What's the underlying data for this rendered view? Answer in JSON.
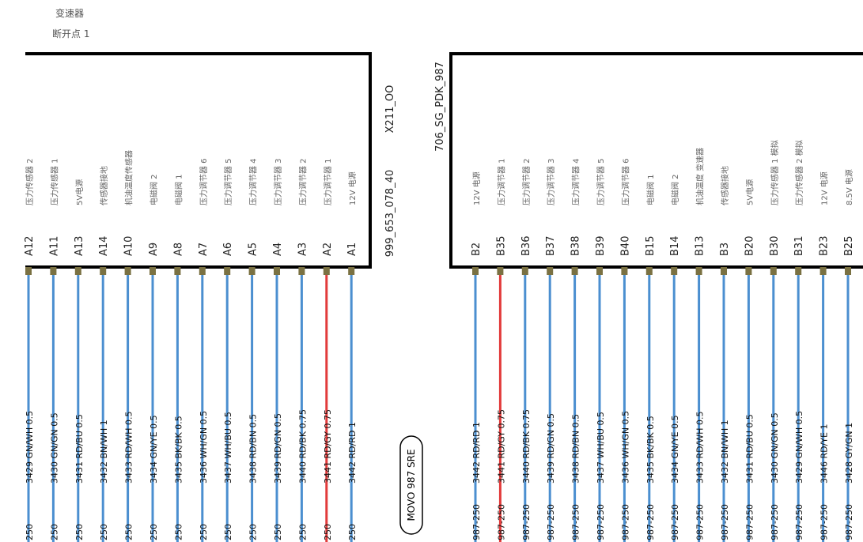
{
  "header": {
    "line1": "变速器",
    "line2": "断开点 1"
  },
  "left_connector": {
    "id": "X211_OO",
    "part_no": "999_653_078_40",
    "pins": [
      {
        "pin": "A12",
        "func": "压力传感器 2",
        "wire": "3429 GN/WH 0.5",
        "end": "250",
        "color": "#4b8fd0"
      },
      {
        "pin": "A11",
        "func": "压力传感器 1",
        "wire": "3430 GN/GN 0.5",
        "end": "250",
        "color": "#4b8fd0"
      },
      {
        "pin": "A13",
        "func": "5V电源",
        "wire": "3431 RD/BU 0.5",
        "end": "250",
        "color": "#4b8fd0"
      },
      {
        "pin": "A14",
        "func": "传感器接地",
        "wire": "3432 BN/WH 1",
        "end": "250",
        "color": "#4b8fd0"
      },
      {
        "pin": "A10",
        "func": "机油温度传感器",
        "wire": "3433 RD/WH 0.5",
        "end": "250",
        "color": "#4b8fd0"
      },
      {
        "pin": "A9",
        "func": "电磁阀 2",
        "wire": "3434 GN/YE 0.5",
        "end": "250",
        "color": "#4b8fd0"
      },
      {
        "pin": "A8",
        "func": "电磁阀 1",
        "wire": "3435 BK/BK 0.5",
        "end": "250",
        "color": "#4b8fd0"
      },
      {
        "pin": "A7",
        "func": "压力调节器 6",
        "wire": "3436 WH/GN 0.5",
        "end": "250",
        "color": "#4b8fd0"
      },
      {
        "pin": "A6",
        "func": "压力调节器 5",
        "wire": "3437 WH/BU 0.5",
        "end": "250",
        "color": "#4b8fd0"
      },
      {
        "pin": "A5",
        "func": "压力调节器 4",
        "wire": "3438 RD/BN 0.5",
        "end": "250",
        "color": "#4b8fd0"
      },
      {
        "pin": "A4",
        "func": "压力调节器 3",
        "wire": "3439 RD/GN 0.5",
        "end": "250",
        "color": "#4b8fd0"
      },
      {
        "pin": "A3",
        "func": "压力调节器 2",
        "wire": "3440 RD/BK 0.75",
        "end": "250",
        "color": "#4b8fd0"
      },
      {
        "pin": "A2",
        "func": "压力调节器 1",
        "wire": "3441 RD/GY 0.75",
        "end": "250",
        "color": "#e23b3b"
      },
      {
        "pin": "A1",
        "func": "12V 电源",
        "wire": "3442 RD/RD 1",
        "end": "250",
        "color": "#4b8fd0"
      }
    ]
  },
  "right_connector": {
    "id": "706_SG_PDK_987",
    "pins": [
      {
        "pin": "B2",
        "func": "12V 电源",
        "wire": "3442 RD/RD 1",
        "end": "987-250",
        "color": "#4b8fd0"
      },
      {
        "pin": "B35",
        "func": "压力调节器 1",
        "wire": "3441 RD/GY 0.75",
        "end": "987-250",
        "color": "#e23b3b"
      },
      {
        "pin": "B36",
        "func": "压力调节器 2",
        "wire": "3440 RD/BK 0.75",
        "end": "987-250",
        "color": "#4b8fd0"
      },
      {
        "pin": "B37",
        "func": "压力调节器 3",
        "wire": "3439 RD/GN 0.5",
        "end": "987-250",
        "color": "#4b8fd0"
      },
      {
        "pin": "B38",
        "func": "压力调节器 4",
        "wire": "3438 RD/BN 0.5",
        "end": "987-250",
        "color": "#4b8fd0"
      },
      {
        "pin": "B39",
        "func": "压力调节器 5",
        "wire": "3437 WH/BU 0.5",
        "end": "987-250",
        "color": "#4b8fd0"
      },
      {
        "pin": "B40",
        "func": "压力调节器 6",
        "wire": "3436 WH/GN 0.5",
        "end": "987-250",
        "color": "#4b8fd0"
      },
      {
        "pin": "B15",
        "func": "电磁阀 1",
        "wire": "3435 BK/BK 0.5",
        "end": "987-250",
        "color": "#4b8fd0"
      },
      {
        "pin": "B14",
        "func": "电磁阀 2",
        "wire": "3434 GN/YE 0.5",
        "end": "987-250",
        "color": "#4b8fd0"
      },
      {
        "pin": "B13",
        "func": "机油温度 变速器",
        "wire": "3433 RD/WH 0.5",
        "end": "987-250",
        "color": "#4b8fd0"
      },
      {
        "pin": "B3",
        "func": "传感器接地",
        "wire": "3432 BN/WH 1",
        "end": "987-250",
        "color": "#4b8fd0"
      },
      {
        "pin": "B20",
        "func": "5V电源",
        "wire": "3431 RD/BU 0.5",
        "end": "987-250",
        "color": "#4b8fd0"
      },
      {
        "pin": "B30",
        "func": "压力传感器 1 模拟",
        "wire": "3430 GN/GN 0.5",
        "end": "987-250",
        "color": "#4b8fd0"
      },
      {
        "pin": "B31",
        "func": "压力传感器 2 模拟",
        "wire": "3429 GN/WH 0.5",
        "end": "987-250",
        "color": "#4b8fd0"
      },
      {
        "pin": "B23",
        "func": "12V 电源",
        "wire": "3446 RD/YE 1",
        "end": "987-250",
        "color": "#4b8fd0"
      },
      {
        "pin": "B25",
        "func": "8.5V 电源",
        "wire": "3428 GY/GN 1",
        "end": "987-250",
        "color": "#4b8fd0"
      }
    ]
  },
  "harness_label": "MOVO 987 SRE",
  "colors": {
    "frame": "#000000",
    "terminal": "#7a7142",
    "wire_default": "#4b8fd0",
    "wire_power": "#e23b3b",
    "pin_text": "#222222",
    "func_text": "#666666"
  }
}
